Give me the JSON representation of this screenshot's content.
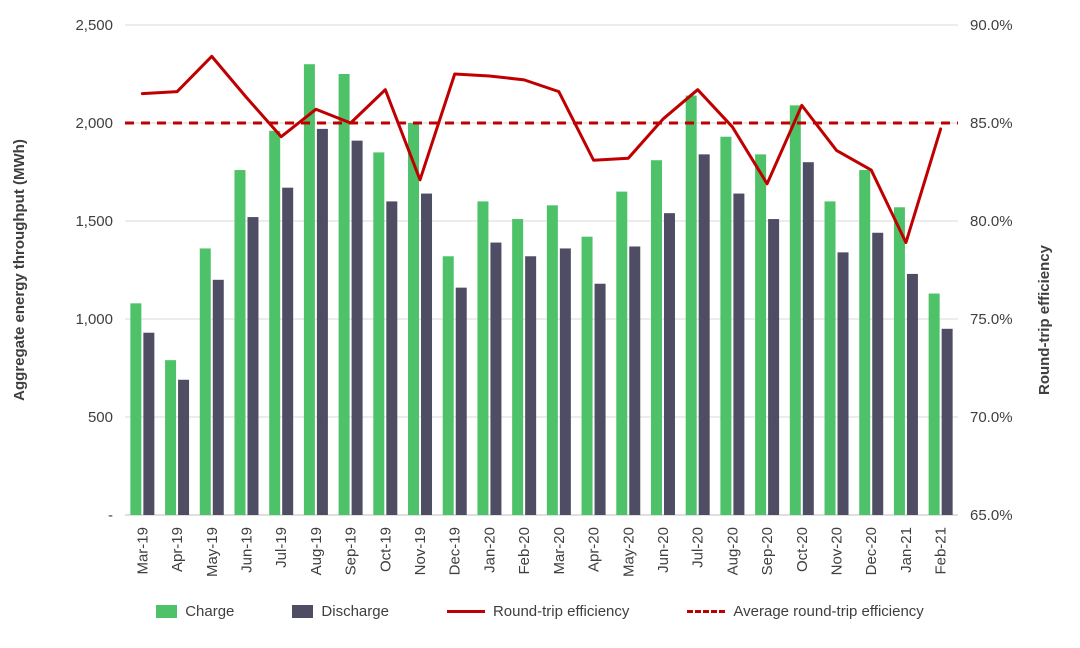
{
  "chart_data": {
    "type": "bar",
    "subtype": "grouped-bars-with-lines",
    "title": "",
    "categories": [
      "Mar-19",
      "Apr-19",
      "May-19",
      "Jun-19",
      "Jul-19",
      "Aug-19",
      "Sep-19",
      "Oct-19",
      "Nov-19",
      "Dec-19",
      "Jan-20",
      "Feb-20",
      "Mar-20",
      "Apr-20",
      "May-20",
      "Jun-20",
      "Jul-20",
      "Aug-20",
      "Sep-20",
      "Oct-20",
      "Nov-20",
      "Dec-20",
      "Jan-21",
      "Feb-21"
    ],
    "series": [
      {
        "name": "Charge",
        "type": "bar",
        "axis": "left",
        "color": "#4ec269",
        "values": [
          1080,
          790,
          1360,
          1760,
          1960,
          2300,
          2250,
          1850,
          2000,
          1320,
          1600,
          1510,
          1580,
          1420,
          1650,
          1810,
          2140,
          1930,
          1840,
          2090,
          1600,
          1760,
          1570,
          1130
        ]
      },
      {
        "name": "Discharge",
        "type": "bar",
        "axis": "left",
        "color": "#4f4d63",
        "values": [
          930,
          690,
          1200,
          1520,
          1670,
          1970,
          1910,
          1600,
          1640,
          1160,
          1390,
          1320,
          1360,
          1180,
          1370,
          1540,
          1840,
          1640,
          1510,
          1800,
          1340,
          1440,
          1230,
          950
        ]
      },
      {
        "name": "Round-trip efficiency",
        "type": "line",
        "axis": "right",
        "color": "#c00000",
        "values": [
          86.5,
          86.6,
          88.4,
          86.3,
          84.3,
          85.7,
          85.0,
          86.7,
          82.1,
          87.5,
          87.4,
          87.2,
          86.6,
          83.1,
          83.2,
          85.2,
          86.7,
          84.8,
          81.9,
          85.9,
          83.6,
          82.6,
          78.9,
          84.7
        ]
      },
      {
        "name": "Average round-trip efficiency",
        "type": "dashed-line",
        "axis": "right",
        "color": "#c00000",
        "value": 85.0
      }
    ],
    "left_axis": {
      "label": "Aggregate energy throughput (MWh)",
      "min": 0,
      "max": 2500,
      "tick_values": [
        2500,
        2000,
        1500,
        1000,
        500,
        0
      ],
      "tick_labels": [
        "2,500",
        "2,000",
        "1,500",
        "1,000",
        "500",
        "-"
      ]
    },
    "right_axis": {
      "label": "Round-trip efficiency",
      "min": 65,
      "max": 90,
      "tick_values": [
        90,
        85,
        80,
        75,
        70,
        65
      ],
      "tick_labels": [
        "90.0%",
        "85.0%",
        "80.0%",
        "75.0%",
        "70.0%",
        "65.0%"
      ]
    },
    "grid": true,
    "legend_position": "bottom",
    "colors": {
      "grid": "#d9d9d9",
      "baseline": "#bfbfbf",
      "tick_text": "#3f3f3f"
    }
  }
}
